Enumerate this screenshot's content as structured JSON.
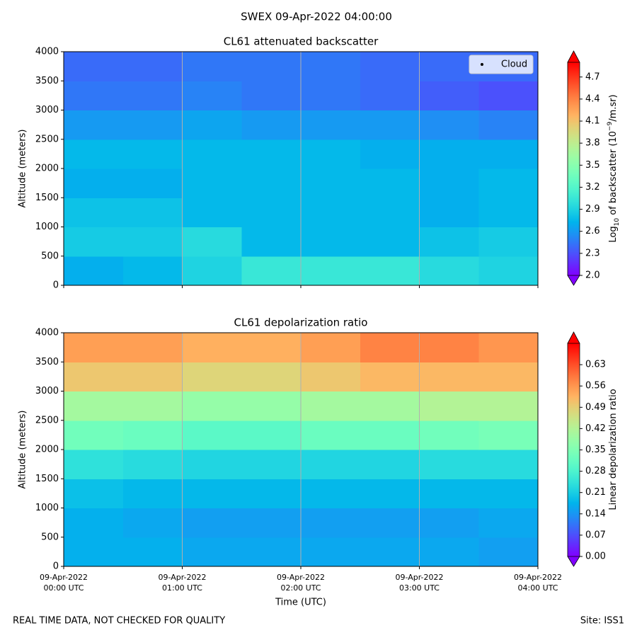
{
  "figure": {
    "suptitle": "SWEX 09-Apr-2022 04:00:00",
    "footer_left": "REAL TIME DATA, NOT CHECKED FOR QUALITY",
    "footer_right": "Site: ISS1"
  },
  "chart_data": [
    {
      "type": "heatmap",
      "title": "CL61 attenuated backscatter",
      "ylabel": "Altitude (meters)",
      "colormap": "rainbow",
      "xlim": [
        0,
        4
      ],
      "xticks": [
        0,
        1,
        2,
        3,
        4
      ],
      "grid": true,
      "ylim": [
        0,
        4000
      ],
      "yticks": [
        0,
        500,
        1000,
        1500,
        2000,
        2500,
        3000,
        3500,
        4000
      ],
      "x_edges": [
        0,
        0.5,
        1,
        1.5,
        2,
        2.5,
        3,
        3.5,
        4
      ],
      "y_edges": [
        0,
        500,
        1000,
        1500,
        2000,
        2500,
        3000,
        3500,
        4000
      ],
      "z": [
        [
          2.7,
          2.75,
          2.9,
          3.05,
          3.05,
          3.05,
          2.95,
          2.9
        ],
        [
          2.85,
          2.85,
          2.95,
          2.75,
          2.75,
          2.75,
          2.8,
          2.85
        ],
        [
          2.8,
          2.8,
          2.75,
          2.75,
          2.75,
          2.75,
          2.7,
          2.75
        ],
        [
          2.7,
          2.7,
          2.75,
          2.75,
          2.75,
          2.75,
          2.7,
          2.75
        ],
        [
          2.75,
          2.75,
          2.75,
          2.75,
          2.75,
          2.7,
          2.7,
          2.7
        ],
        [
          2.6,
          2.6,
          2.65,
          2.6,
          2.6,
          2.6,
          2.55,
          2.5
        ],
        [
          2.45,
          2.45,
          2.5,
          2.45,
          2.45,
          2.4,
          2.35,
          2.3
        ],
        [
          2.4,
          2.4,
          2.45,
          2.45,
          2.45,
          2.4,
          2.4,
          2.4
        ]
      ],
      "legend": {
        "entries": [
          "Cloud"
        ],
        "location": "upper right",
        "marker_color": "#000000"
      },
      "colorbar": {
        "label_parts": [
          "Log",
          "10",
          " of backscatter (10",
          "−9",
          "/m.sr)"
        ],
        "clim": [
          2.0,
          4.9
        ],
        "ticks": [
          {
            "value": 2.0,
            "label": "2.0"
          },
          2.3,
          2.6,
          2.9,
          3.2,
          3.5,
          3.8,
          4.1,
          4.4,
          4.7
        ]
      }
    },
    {
      "type": "heatmap",
      "title": "CL61 depolarization ratio",
      "ylabel": "Altitude (meters)",
      "xlabel": "Time (UTC)",
      "colormap": "rainbow",
      "xlim": [
        0,
        4
      ],
      "grid": true,
      "xticks": [
        {
          "value": 0,
          "label": [
            "09-Apr-2022",
            "00:00 UTC"
          ]
        },
        {
          "value": 1,
          "label": [
            "09-Apr-2022",
            "01:00 UTC"
          ]
        },
        {
          "value": 2,
          "label": [
            "09-Apr-2022",
            "02:00 UTC"
          ]
        },
        {
          "value": 3,
          "label": [
            "09-Apr-2022",
            "03:00 UTC"
          ]
        },
        {
          "value": 4,
          "label": [
            "09-Apr-2022",
            "04:00 UTC"
          ]
        }
      ],
      "ylim": [
        0,
        4000
      ],
      "yticks": [
        0,
        500,
        1000,
        1500,
        2000,
        2500,
        3000,
        3500,
        4000
      ],
      "x_edges": [
        0,
        0.5,
        1,
        1.5,
        2,
        2.5,
        3,
        3.5,
        4
      ],
      "y_edges": [
        0,
        500,
        1000,
        1500,
        2000,
        2500,
        3000,
        3500,
        4000
      ],
      "z": [
        [
          0.17,
          0.17,
          0.16,
          0.16,
          0.16,
          0.16,
          0.16,
          0.15
        ],
        [
          0.17,
          0.16,
          0.15,
          0.15,
          0.15,
          0.15,
          0.15,
          0.16
        ],
        [
          0.19,
          0.18,
          0.18,
          0.18,
          0.18,
          0.18,
          0.18,
          0.18
        ],
        [
          0.24,
          0.23,
          0.22,
          0.22,
          0.22,
          0.22,
          0.23,
          0.23
        ],
        [
          0.33,
          0.32,
          0.3,
          0.3,
          0.32,
          0.32,
          0.33,
          0.34
        ],
        [
          0.4,
          0.4,
          0.38,
          0.38,
          0.4,
          0.4,
          0.42,
          0.42
        ],
        [
          0.5,
          0.5,
          0.48,
          0.48,
          0.5,
          0.52,
          0.52,
          0.52
        ],
        [
          0.55,
          0.55,
          0.53,
          0.53,
          0.55,
          0.58,
          0.58,
          0.56
        ]
      ],
      "colorbar": {
        "label_parts": [
          "Linear depolarization ratio"
        ],
        "clim": [
          0,
          0.7
        ],
        "ticks": [
          {
            "value": 0,
            "label": "0.00"
          },
          0.07,
          0.14,
          0.21,
          0.28,
          0.35,
          0.42,
          0.49,
          0.56,
          0.63
        ]
      }
    }
  ]
}
